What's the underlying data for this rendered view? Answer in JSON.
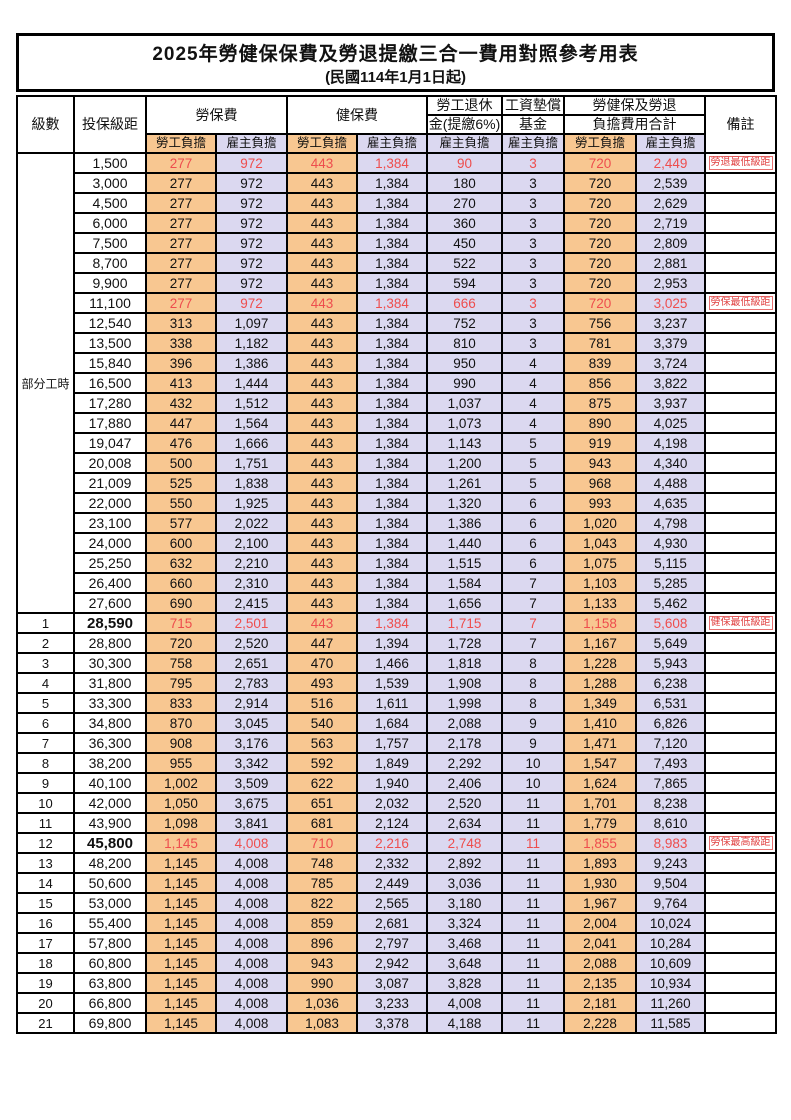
{
  "title": "2025年勞健保保費及勞退提繳三合一費用對照參考用表",
  "subtitle": "(民國114年1月1日起)",
  "colors": {
    "employee_col_bg": "#F8C791",
    "employer_col_bg": "#DBD8F0",
    "highlight_text": "#ee4d4d",
    "remark_text": "#e04040",
    "border": "#000000"
  },
  "header": {
    "level": "級數",
    "bracket": "投保級距",
    "labor_ins": "勞保費",
    "health_ins": "健保費",
    "pension_line1": "勞工退休",
    "pension_line2": "金(提繳6%)",
    "wage_fund_line1": "工資墊償",
    "wage_fund_line2": "基金",
    "total_line1": "勞健保及勞退",
    "total_line2": "負擔費用合計",
    "remark": "備註",
    "employee_share": "勞工負擔",
    "employer_share": "雇主負擔"
  },
  "part_time": {
    "label": "部分工時",
    "span": 23
  },
  "rows": [
    {
      "level": "",
      "bracket": "1,500",
      "v": [
        "277",
        "972",
        "443",
        "1,384",
        "90",
        "3",
        "720",
        "2,449"
      ],
      "remark": "勞退最低級距",
      "red": true,
      "boldBracket": false
    },
    {
      "level": "",
      "bracket": "3,000",
      "v": [
        "277",
        "972",
        "443",
        "1,384",
        "180",
        "3",
        "720",
        "2,539"
      ],
      "remark": "",
      "red": false,
      "boldBracket": false
    },
    {
      "level": "",
      "bracket": "4,500",
      "v": [
        "277",
        "972",
        "443",
        "1,384",
        "270",
        "3",
        "720",
        "2,629"
      ],
      "remark": "",
      "red": false,
      "boldBracket": false
    },
    {
      "level": "",
      "bracket": "6,000",
      "v": [
        "277",
        "972",
        "443",
        "1,384",
        "360",
        "3",
        "720",
        "2,719"
      ],
      "remark": "",
      "red": false,
      "boldBracket": false
    },
    {
      "level": "",
      "bracket": "7,500",
      "v": [
        "277",
        "972",
        "443",
        "1,384",
        "450",
        "3",
        "720",
        "2,809"
      ],
      "remark": "",
      "red": false,
      "boldBracket": false
    },
    {
      "level": "",
      "bracket": "8,700",
      "v": [
        "277",
        "972",
        "443",
        "1,384",
        "522",
        "3",
        "720",
        "2,881"
      ],
      "remark": "",
      "red": false,
      "boldBracket": false
    },
    {
      "level": "",
      "bracket": "9,900",
      "v": [
        "277",
        "972",
        "443",
        "1,384",
        "594",
        "3",
        "720",
        "2,953"
      ],
      "remark": "",
      "red": false,
      "boldBracket": false
    },
    {
      "level": "",
      "bracket": "11,100",
      "v": [
        "277",
        "972",
        "443",
        "1,384",
        "666",
        "3",
        "720",
        "3,025"
      ],
      "remark": "勞保最低級距",
      "red": true,
      "boldBracket": false
    },
    {
      "level": "",
      "bracket": "12,540",
      "v": [
        "313",
        "1,097",
        "443",
        "1,384",
        "752",
        "3",
        "756",
        "3,237"
      ],
      "remark": "",
      "red": false,
      "boldBracket": false
    },
    {
      "level": "",
      "bracket": "13,500",
      "v": [
        "338",
        "1,182",
        "443",
        "1,384",
        "810",
        "3",
        "781",
        "3,379"
      ],
      "remark": "",
      "red": false,
      "boldBracket": false
    },
    {
      "level": "",
      "bracket": "15,840",
      "v": [
        "396",
        "1,386",
        "443",
        "1,384",
        "950",
        "4",
        "839",
        "3,724"
      ],
      "remark": "",
      "red": false,
      "boldBracket": false
    },
    {
      "level": "",
      "bracket": "16,500",
      "v": [
        "413",
        "1,444",
        "443",
        "1,384",
        "990",
        "4",
        "856",
        "3,822"
      ],
      "remark": "",
      "red": false,
      "boldBracket": false
    },
    {
      "level": "",
      "bracket": "17,280",
      "v": [
        "432",
        "1,512",
        "443",
        "1,384",
        "1,037",
        "4",
        "875",
        "3,937"
      ],
      "remark": "",
      "red": false,
      "boldBracket": false
    },
    {
      "level": "",
      "bracket": "17,880",
      "v": [
        "447",
        "1,564",
        "443",
        "1,384",
        "1,073",
        "4",
        "890",
        "4,025"
      ],
      "remark": "",
      "red": false,
      "boldBracket": false
    },
    {
      "level": "",
      "bracket": "19,047",
      "v": [
        "476",
        "1,666",
        "443",
        "1,384",
        "1,143",
        "5",
        "919",
        "4,198"
      ],
      "remark": "",
      "red": false,
      "boldBracket": false
    },
    {
      "level": "",
      "bracket": "20,008",
      "v": [
        "500",
        "1,751",
        "443",
        "1,384",
        "1,200",
        "5",
        "943",
        "4,340"
      ],
      "remark": "",
      "red": false,
      "boldBracket": false
    },
    {
      "level": "",
      "bracket": "21,009",
      "v": [
        "525",
        "1,838",
        "443",
        "1,384",
        "1,261",
        "5",
        "968",
        "4,488"
      ],
      "remark": "",
      "red": false,
      "boldBracket": false
    },
    {
      "level": "",
      "bracket": "22,000",
      "v": [
        "550",
        "1,925",
        "443",
        "1,384",
        "1,320",
        "6",
        "993",
        "4,635"
      ],
      "remark": "",
      "red": false,
      "boldBracket": false
    },
    {
      "level": "",
      "bracket": "23,100",
      "v": [
        "577",
        "2,022",
        "443",
        "1,384",
        "1,386",
        "6",
        "1,020",
        "4,798"
      ],
      "remark": "",
      "red": false,
      "boldBracket": false
    },
    {
      "level": "",
      "bracket": "24,000",
      "v": [
        "600",
        "2,100",
        "443",
        "1,384",
        "1,440",
        "6",
        "1,043",
        "4,930"
      ],
      "remark": "",
      "red": false,
      "boldBracket": false
    },
    {
      "level": "",
      "bracket": "25,250",
      "v": [
        "632",
        "2,210",
        "443",
        "1,384",
        "1,515",
        "6",
        "1,075",
        "5,115"
      ],
      "remark": "",
      "red": false,
      "boldBracket": false
    },
    {
      "level": "",
      "bracket": "26,400",
      "v": [
        "660",
        "2,310",
        "443",
        "1,384",
        "1,584",
        "7",
        "1,103",
        "5,285"
      ],
      "remark": "",
      "red": false,
      "boldBracket": false
    },
    {
      "level": "",
      "bracket": "27,600",
      "v": [
        "690",
        "2,415",
        "443",
        "1,384",
        "1,656",
        "7",
        "1,133",
        "5,462"
      ],
      "remark": "",
      "red": false,
      "boldBracket": false
    },
    {
      "level": "1",
      "bracket": "28,590",
      "v": [
        "715",
        "2,501",
        "443",
        "1,384",
        "1,715",
        "7",
        "1,158",
        "5,608"
      ],
      "remark": "健保最低級距",
      "red": true,
      "boldBracket": true
    },
    {
      "level": "2",
      "bracket": "28,800",
      "v": [
        "720",
        "2,520",
        "447",
        "1,394",
        "1,728",
        "7",
        "1,167",
        "5,649"
      ],
      "remark": "",
      "red": false,
      "boldBracket": false
    },
    {
      "level": "3",
      "bracket": "30,300",
      "v": [
        "758",
        "2,651",
        "470",
        "1,466",
        "1,818",
        "8",
        "1,228",
        "5,943"
      ],
      "remark": "",
      "red": false,
      "boldBracket": false
    },
    {
      "level": "4",
      "bracket": "31,800",
      "v": [
        "795",
        "2,783",
        "493",
        "1,539",
        "1,908",
        "8",
        "1,288",
        "6,238"
      ],
      "remark": "",
      "red": false,
      "boldBracket": false
    },
    {
      "level": "5",
      "bracket": "33,300",
      "v": [
        "833",
        "2,914",
        "516",
        "1,611",
        "1,998",
        "8",
        "1,349",
        "6,531"
      ],
      "remark": "",
      "red": false,
      "boldBracket": false
    },
    {
      "level": "6",
      "bracket": "34,800",
      "v": [
        "870",
        "3,045",
        "540",
        "1,684",
        "2,088",
        "9",
        "1,410",
        "6,826"
      ],
      "remark": "",
      "red": false,
      "boldBracket": false
    },
    {
      "level": "7",
      "bracket": "36,300",
      "v": [
        "908",
        "3,176",
        "563",
        "1,757",
        "2,178",
        "9",
        "1,471",
        "7,120"
      ],
      "remark": "",
      "red": false,
      "boldBracket": false
    },
    {
      "level": "8",
      "bracket": "38,200",
      "v": [
        "955",
        "3,342",
        "592",
        "1,849",
        "2,292",
        "10",
        "1,547",
        "7,493"
      ],
      "remark": "",
      "red": false,
      "boldBracket": false
    },
    {
      "level": "9",
      "bracket": "40,100",
      "v": [
        "1,002",
        "3,509",
        "622",
        "1,940",
        "2,406",
        "10",
        "1,624",
        "7,865"
      ],
      "remark": "",
      "red": false,
      "boldBracket": false
    },
    {
      "level": "10",
      "bracket": "42,000",
      "v": [
        "1,050",
        "3,675",
        "651",
        "2,032",
        "2,520",
        "11",
        "1,701",
        "8,238"
      ],
      "remark": "",
      "red": false,
      "boldBracket": false
    },
    {
      "level": "11",
      "bracket": "43,900",
      "v": [
        "1,098",
        "3,841",
        "681",
        "2,124",
        "2,634",
        "11",
        "1,779",
        "8,610"
      ],
      "remark": "",
      "red": false,
      "boldBracket": false
    },
    {
      "level": "12",
      "bracket": "45,800",
      "v": [
        "1,145",
        "4,008",
        "710",
        "2,216",
        "2,748",
        "11",
        "1,855",
        "8,983"
      ],
      "remark": "勞保最高級距",
      "red": true,
      "boldBracket": true
    },
    {
      "level": "13",
      "bracket": "48,200",
      "v": [
        "1,145",
        "4,008",
        "748",
        "2,332",
        "2,892",
        "11",
        "1,893",
        "9,243"
      ],
      "remark": "",
      "red": false,
      "boldBracket": false
    },
    {
      "level": "14",
      "bracket": "50,600",
      "v": [
        "1,145",
        "4,008",
        "785",
        "2,449",
        "3,036",
        "11",
        "1,930",
        "9,504"
      ],
      "remark": "",
      "red": false,
      "boldBracket": false
    },
    {
      "level": "15",
      "bracket": "53,000",
      "v": [
        "1,145",
        "4,008",
        "822",
        "2,565",
        "3,180",
        "11",
        "1,967",
        "9,764"
      ],
      "remark": "",
      "red": false,
      "boldBracket": false
    },
    {
      "level": "16",
      "bracket": "55,400",
      "v": [
        "1,145",
        "4,008",
        "859",
        "2,681",
        "3,324",
        "11",
        "2,004",
        "10,024"
      ],
      "remark": "",
      "red": false,
      "boldBracket": false
    },
    {
      "level": "17",
      "bracket": "57,800",
      "v": [
        "1,145",
        "4,008",
        "896",
        "2,797",
        "3,468",
        "11",
        "2,041",
        "10,284"
      ],
      "remark": "",
      "red": false,
      "boldBracket": false
    },
    {
      "level": "18",
      "bracket": "60,800",
      "v": [
        "1,145",
        "4,008",
        "943",
        "2,942",
        "3,648",
        "11",
        "2,088",
        "10,609"
      ],
      "remark": "",
      "red": false,
      "boldBracket": false
    },
    {
      "level": "19",
      "bracket": "63,800",
      "v": [
        "1,145",
        "4,008",
        "990",
        "3,087",
        "3,828",
        "11",
        "2,135",
        "10,934"
      ],
      "remark": "",
      "red": false,
      "boldBracket": false
    },
    {
      "level": "20",
      "bracket": "66,800",
      "v": [
        "1,145",
        "4,008",
        "1,036",
        "3,233",
        "4,008",
        "11",
        "2,181",
        "11,260"
      ],
      "remark": "",
      "red": false,
      "boldBracket": false
    },
    {
      "level": "21",
      "bracket": "69,800",
      "v": [
        "1,145",
        "4,008",
        "1,083",
        "3,378",
        "4,188",
        "11",
        "2,228",
        "11,585"
      ],
      "remark": "",
      "red": false,
      "boldBracket": false
    }
  ]
}
